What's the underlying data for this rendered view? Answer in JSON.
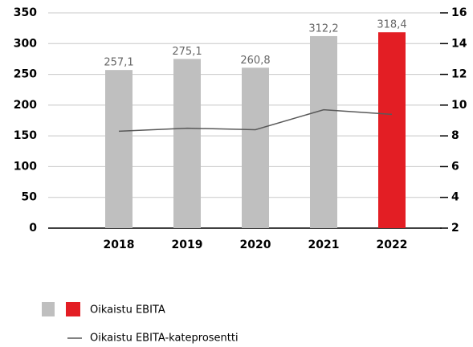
{
  "chart_data": {
    "type": "bar",
    "categories": [
      "2018",
      "2019",
      "2020",
      "2021",
      "2022"
    ],
    "series": [
      {
        "name": "Oikaistu EBITA",
        "colors": [
          "#bfbfbf",
          "#bfbfbf",
          "#bfbfbf",
          "#bfbfbf",
          "#e31e24"
        ],
        "values": [
          257.1,
          275.1,
          260.8,
          312.2,
          318.4
        ],
        "value_labels": [
          "257,1",
          "275,1",
          "260,8",
          "312,2",
          "318,4"
        ]
      },
      {
        "name": "Oikaistu EBITA-kateprosentti",
        "type": "line",
        "axis": "y2",
        "color": "#595959",
        "values": [
          8.3,
          8.5,
          8.4,
          9.7,
          9.4
        ]
      }
    ],
    "ylim": [
      0,
      350
    ],
    "yticks": [
      0,
      50,
      100,
      150,
      200,
      250,
      300,
      350
    ],
    "y2lim": [
      2,
      16
    ],
    "y2ticks": [
      2,
      4,
      6,
      8,
      10,
      12,
      14,
      16
    ],
    "grid": true
  }
}
